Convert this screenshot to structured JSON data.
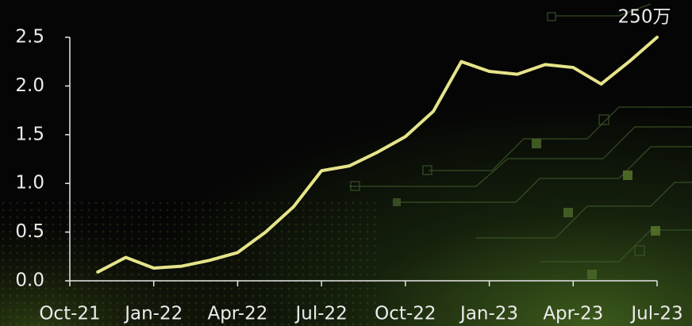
{
  "chart_data": {
    "type": "line",
    "categories": [
      "Oct-21",
      null,
      null,
      "Jan-22",
      null,
      null,
      "Apr-22",
      null,
      null,
      "Jul-22",
      null,
      null,
      "Oct-22",
      null,
      null,
      "Jan-23",
      null,
      null,
      "Apr-23",
      null,
      null,
      "Jul-23"
    ],
    "values": [
      null,
      0.09,
      0.24,
      0.13,
      0.15,
      0.21,
      0.29,
      0.5,
      0.76,
      1.13,
      1.18,
      1.32,
      1.48,
      1.74,
      2.25,
      2.15,
      2.12,
      2.22,
      2.19,
      2.02,
      2.25,
      2.5
    ],
    "color": "#e6e48a",
    "ylim": [
      0,
      2.5
    ],
    "yticks": [
      {
        "value": 0,
        "label": "0.0"
      },
      0.5,
      {
        "value": 1,
        "label": "1.0"
      },
      1.5,
      {
        "value": 2,
        "label": "2.0"
      },
      2.5
    ],
    "annotation": "250万"
  }
}
